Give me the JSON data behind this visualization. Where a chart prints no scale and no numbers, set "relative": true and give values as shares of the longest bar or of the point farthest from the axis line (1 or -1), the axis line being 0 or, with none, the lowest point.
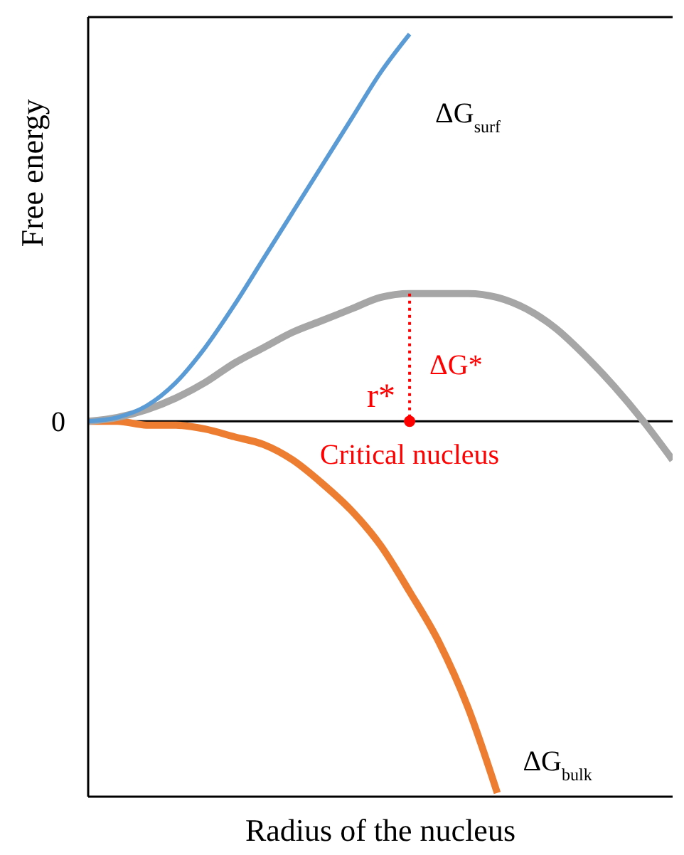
{
  "chart_data": {
    "type": "line",
    "relative": true,
    "xlabel": "Radius of the nucleus",
    "ylabel": "Free energy",
    "categories": [
      null,
      null,
      null,
      null,
      null,
      null,
      null,
      null,
      null,
      null,
      null,
      null,
      null,
      null,
      null,
      null,
      null,
      null,
      null,
      null,
      null
    ],
    "series": [
      {
        "name": "ΔG$_{surf}$",
        "color": "#5b9bd5",
        "values": [
          0,
          0.01,
          0.04,
          0.1,
          0.19,
          0.3,
          0.42,
          0.54,
          0.66,
          0.78,
          0.9,
          1.0,
          null,
          null,
          null,
          null,
          null,
          null,
          null,
          null,
          null
        ]
      },
      {
        "color": "#a6a6a6",
        "values": [
          0,
          0.01,
          0.03,
          0.06,
          0.1,
          0.15,
          0.19,
          0.23,
          0.26,
          0.29,
          0.32,
          0.33,
          0.33,
          0.33,
          0.32,
          0.29,
          0.24,
          0.17,
          0.09,
          0,
          -0.1
        ]
      },
      {
        "name": "ΔG$_{bulk}$",
        "color": "#ed7d31",
        "values": [
          0,
          0,
          -0.01,
          -0.01,
          -0.02,
          -0.04,
          -0.06,
          -0.1,
          -0.16,
          -0.23,
          -0.32,
          -0.44,
          -0.57,
          -0.74,
          -0.96,
          null,
          null,
          null,
          null,
          null,
          null
        ]
      }
    ],
    "ref_lines": [
      {
        "axis": "y",
        "value": 0,
        "label": "0"
      }
    ],
    "annotations": [
      "r*",
      "ΔG*",
      "Critical nucleus"
    ]
  }
}
